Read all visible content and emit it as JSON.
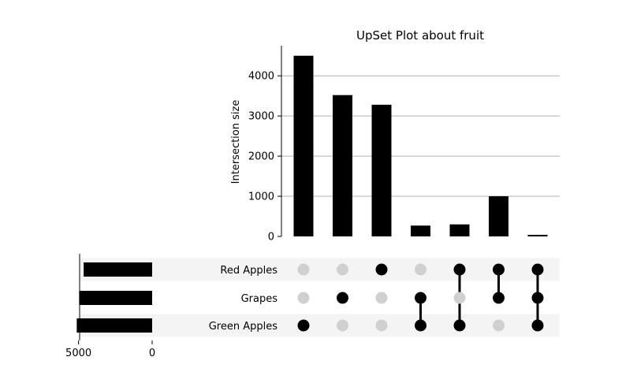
{
  "chart_data": {
    "type": "upset",
    "title": "UpSet Plot about fruit",
    "ylabel": "Intersection size",
    "ylim": [
      0,
      4750
    ],
    "yticks": [
      0,
      1000,
      2000,
      3000,
      4000
    ],
    "grid": true,
    "sets": [
      {
        "name": "Red Apples",
        "size": 4650
      },
      {
        "name": "Grapes",
        "size": 4960
      },
      {
        "name": "Green Apples",
        "size": 5120
      }
    ],
    "set_size_ticks": [
      "5000",
      "0"
    ],
    "set_size_xlim": [
      5300,
      0
    ],
    "intersections": [
      {
        "members": [
          2
        ],
        "value": 4500
      },
      {
        "members": [
          1
        ],
        "value": 3520
      },
      {
        "members": [
          0
        ],
        "value": 3280
      },
      {
        "members": [
          1,
          2
        ],
        "value": 270
      },
      {
        "members": [
          0,
          2
        ],
        "value": 300
      },
      {
        "members": [
          0,
          1
        ],
        "value": 1000
      },
      {
        "members": [
          0,
          1,
          2
        ],
        "value": 40
      }
    ],
    "colors": {
      "bar": "#000000",
      "dot_active": "#000000",
      "dot_inactive": "#d0d0d0",
      "row_shade": "#f4f4f4",
      "grid": "#b0b0b0"
    }
  }
}
